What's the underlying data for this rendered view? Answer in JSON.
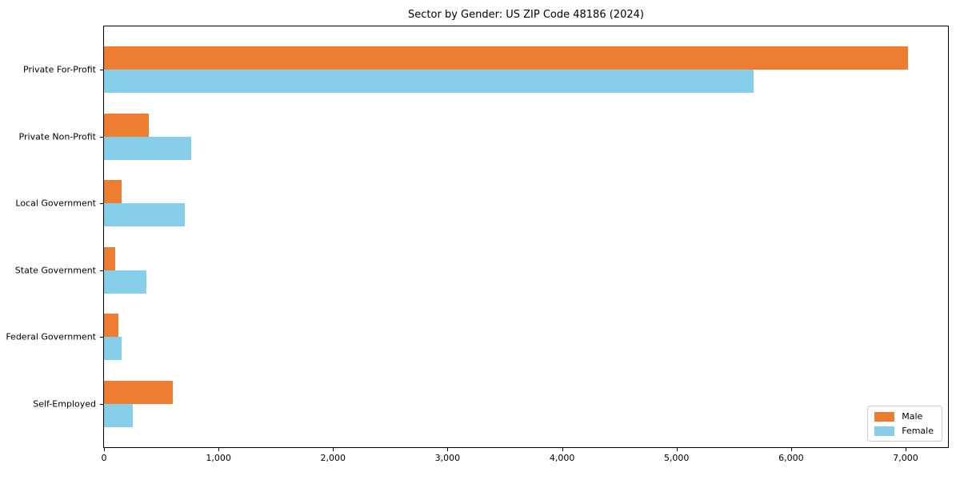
{
  "figure": {
    "background": "#ffffff",
    "plot_border_color": "#000000"
  },
  "chart_data": {
    "type": "bar",
    "orientation": "horizontal",
    "title": "Sector by Gender: US ZIP Code 48186 (2024)",
    "categories": [
      "Private For-Profit",
      "Private Non-Profit",
      "Local Government",
      "State Government",
      "Federal Government",
      "Self-Employed"
    ],
    "series": [
      {
        "name": "Male",
        "color": "#ED7D31",
        "values": [
          7018,
          390,
          150,
          98,
          126,
          603
        ]
      },
      {
        "name": "Female",
        "color": "#87CEEB",
        "values": [
          5673,
          758,
          708,
          370,
          151,
          254
        ]
      }
    ],
    "xlabel": "",
    "ylabel": "",
    "xlim": [
      0,
      7370
    ],
    "xticks": [
      0,
      1000,
      2000,
      3000,
      4000,
      5000,
      6000,
      7000
    ],
    "xtick_labels": [
      "0",
      "1,000",
      "2,000",
      "3,000",
      "4,000",
      "5,000",
      "6,000",
      "7,000"
    ],
    "grid": false,
    "legend": {
      "position": "lower right",
      "entries": [
        "Male",
        "Female"
      ]
    },
    "bar_height_fraction": 0.35
  }
}
